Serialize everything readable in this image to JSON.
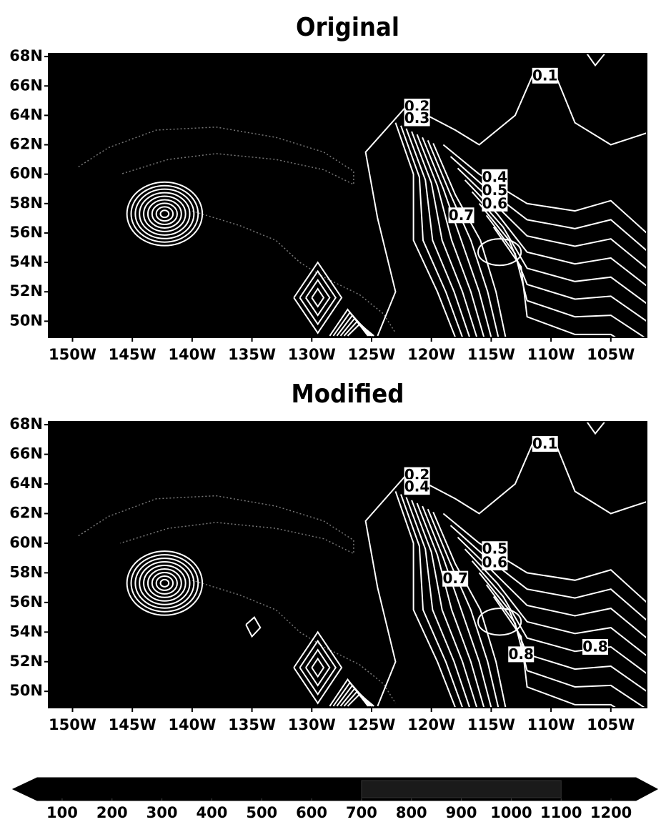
{
  "chart_data": [
    {
      "type": "contour",
      "title": "Original",
      "xlim": [
        -152,
        -102
      ],
      "ylim": [
        48.9,
        68.2
      ],
      "xticks": [
        {
          "value": -150,
          "label": "150W"
        },
        {
          "value": -145,
          "label": "145W"
        },
        {
          "value": -140,
          "label": "140W"
        },
        {
          "value": -135,
          "label": "135W"
        },
        {
          "value": -130,
          "label": "130W"
        },
        {
          "value": -125,
          "label": "125W"
        },
        {
          "value": -120,
          "label": "120W"
        },
        {
          "value": -115,
          "label": "115W"
        },
        {
          "value": -110,
          "label": "110W"
        },
        {
          "value": -105,
          "label": "105W"
        }
      ],
      "yticks": [
        {
          "value": 50,
          "label": "50N"
        },
        {
          "value": 52,
          "label": "52N"
        },
        {
          "value": 54,
          "label": "54N"
        },
        {
          "value": 56,
          "label": "56N"
        },
        {
          "value": 58,
          "label": "58N"
        },
        {
          "value": 60,
          "label": "60N"
        },
        {
          "value": 62,
          "label": "62N"
        },
        {
          "value": 64,
          "label": "64N"
        },
        {
          "value": 66,
          "label": "66N"
        },
        {
          "value": 68,
          "label": "68N"
        }
      ],
      "contour_labels": [
        0.1,
        0.2,
        0.3,
        0.4,
        0.5,
        0.6,
        0.7
      ]
    },
    {
      "type": "contour",
      "title": "Modified",
      "xlim": [
        -152,
        -102
      ],
      "ylim": [
        48.9,
        68.2
      ],
      "xticks": [
        {
          "value": -150,
          "label": "150W"
        },
        {
          "value": -145,
          "label": "145W"
        },
        {
          "value": -140,
          "label": "140W"
        },
        {
          "value": -135,
          "label": "135W"
        },
        {
          "value": -130,
          "label": "130W"
        },
        {
          "value": -125,
          "label": "125W"
        },
        {
          "value": -120,
          "label": "120W"
        },
        {
          "value": -115,
          "label": "115W"
        },
        {
          "value": -110,
          "label": "110W"
        },
        {
          "value": -105,
          "label": "105W"
        }
      ],
      "yticks": [
        {
          "value": 50,
          "label": "50N"
        },
        {
          "value": 52,
          "label": "52N"
        },
        {
          "value": 54,
          "label": "54N"
        },
        {
          "value": 56,
          "label": "56N"
        },
        {
          "value": 58,
          "label": "58N"
        },
        {
          "value": 60,
          "label": "60N"
        },
        {
          "value": 62,
          "label": "62N"
        },
        {
          "value": 64,
          "label": "64N"
        },
        {
          "value": 66,
          "label": "66N"
        },
        {
          "value": 68,
          "label": "68N"
        }
      ],
      "contour_labels": [
        0.1,
        0.2,
        0.4,
        0.5,
        0.6,
        0.7,
        0.8,
        0.8
      ]
    }
  ],
  "colorbar": {
    "lim": [
      50,
      1250
    ],
    "ticks": [
      100,
      200,
      300,
      400,
      500,
      600,
      700,
      800,
      900,
      1000,
      1100,
      1200
    ]
  }
}
